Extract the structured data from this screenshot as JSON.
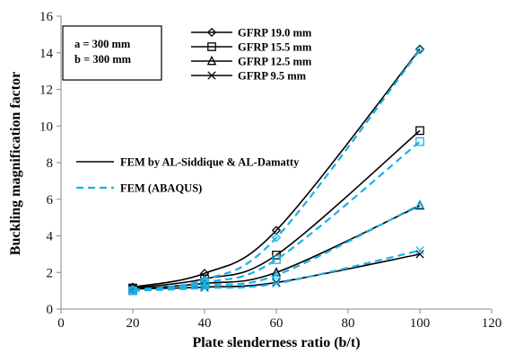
{
  "chart_data": {
    "type": "line",
    "xlabel": "Plate slenderness ratio (b/t)",
    "ylabel": "Buckling magnification factor",
    "xlim": [
      0,
      120
    ],
    "ylim": [
      0,
      16
    ],
    "xticks": [
      0,
      20,
      40,
      60,
      80,
      100,
      120
    ],
    "yticks": [
      0,
      2,
      4,
      6,
      8,
      10,
      12,
      14,
      16
    ],
    "grid": false,
    "x": [
      20,
      40,
      60,
      100
    ],
    "annotation": [
      "a = 300 mm",
      "b = 300 mm"
    ],
    "marker_legend": [
      {
        "name": "GFRP 19.0 mm",
        "marker": "diamond"
      },
      {
        "name": "GFRP 15.5 mm",
        "marker": "square"
      },
      {
        "name": "GFRP 12.5 mm",
        "marker": "triangle"
      },
      {
        "name": "GFRP 9.5 mm",
        "marker": "x"
      }
    ],
    "style_legend": [
      {
        "name": "FEM by AL-Siddique & AL-Damatty",
        "color": "#000000",
        "dash": "solid"
      },
      {
        "name": "FEM (ABAQUS)",
        "color": "#1ab0e6",
        "dash": "dashed"
      }
    ],
    "series": [
      {
        "thickness": "GFRP 19.0 mm",
        "method": "FEM by AL-Siddique & AL-Damatty",
        "marker": "diamond",
        "values": [
          1.2,
          1.95,
          4.3,
          14.2
        ]
      },
      {
        "thickness": "GFRP 19.0 mm",
        "method": "FEM (ABAQUS)",
        "marker": "diamond",
        "values": [
          1.05,
          1.6,
          3.9,
          14.15
        ]
      },
      {
        "thickness": "GFRP 15.5 mm",
        "method": "FEM by AL-Siddique & AL-Damatty",
        "marker": "square",
        "values": [
          1.15,
          1.65,
          2.95,
          9.75
        ]
      },
      {
        "thickness": "GFRP 15.5 mm",
        "method": "FEM (ABAQUS)",
        "marker": "square",
        "values": [
          1.0,
          1.45,
          2.7,
          9.15
        ]
      },
      {
        "thickness": "GFRP 12.5 mm",
        "method": "FEM by AL-Siddique & AL-Damatty",
        "marker": "triangle",
        "values": [
          1.1,
          1.4,
          2.0,
          5.65
        ]
      },
      {
        "thickness": "GFRP 12.5 mm",
        "method": "FEM (ABAQUS)",
        "marker": "triangle",
        "values": [
          1.0,
          1.3,
          1.85,
          5.7
        ]
      },
      {
        "thickness": "GFRP 9.5 mm",
        "method": "FEM by AL-Siddique & AL-Damatty",
        "marker": "x",
        "values": [
          1.1,
          1.2,
          1.45,
          3.0
        ]
      },
      {
        "thickness": "GFRP 9.5 mm",
        "method": "FEM (ABAQUS)",
        "marker": "x",
        "values": [
          1.0,
          1.15,
          1.4,
          3.2
        ]
      }
    ]
  }
}
